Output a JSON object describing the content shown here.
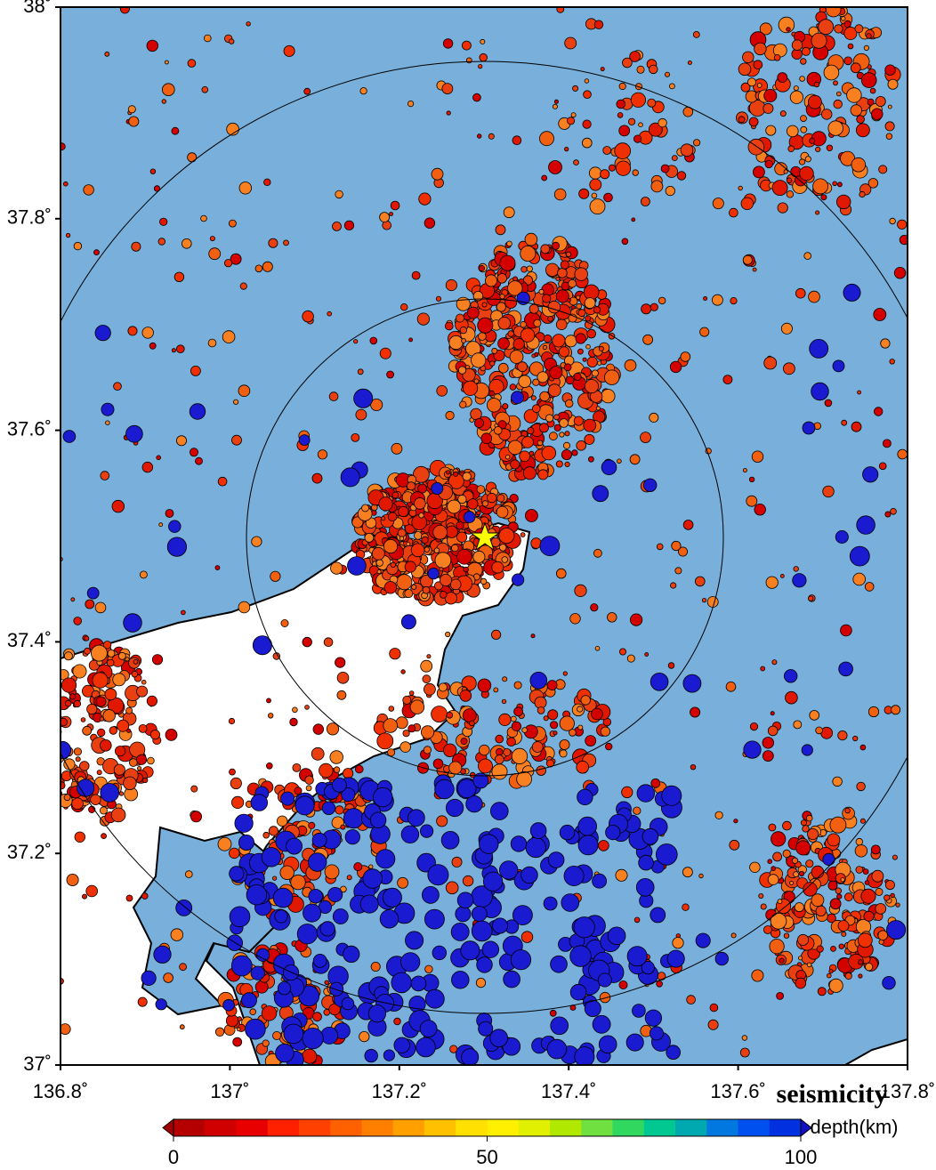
{
  "map": {
    "xlim": [
      136.8,
      137.8
    ],
    "ylim": [
      37,
      38
    ],
    "xticks": [
      {
        "value": 136.8,
        "label": "136.8˚"
      },
      {
        "value": 137,
        "label": "137˚"
      },
      {
        "value": 137.2,
        "label": "137.2˚"
      },
      {
        "value": 137.4,
        "label": "137.4˚"
      },
      {
        "value": 137.6,
        "label": "137.6˚"
      },
      {
        "value": 137.8,
        "label": "137.8˚"
      }
    ],
    "yticks": [
      {
        "value": 37,
        "label": "37˚"
      },
      {
        "value": 37.2,
        "label": "37.2˚"
      },
      {
        "value": 37.4,
        "label": "37.4˚"
      },
      {
        "value": 37.6,
        "label": "37.6˚"
      },
      {
        "value": 37.8,
        "label": "37.8˚"
      },
      {
        "value": 38,
        "label": "38˚"
      }
    ],
    "title": "seismicity",
    "colorbar": {
      "label": "depth(km)",
      "lim": [
        0,
        100
      ],
      "ticks": [
        0,
        50,
        100
      ]
    }
  }
}
